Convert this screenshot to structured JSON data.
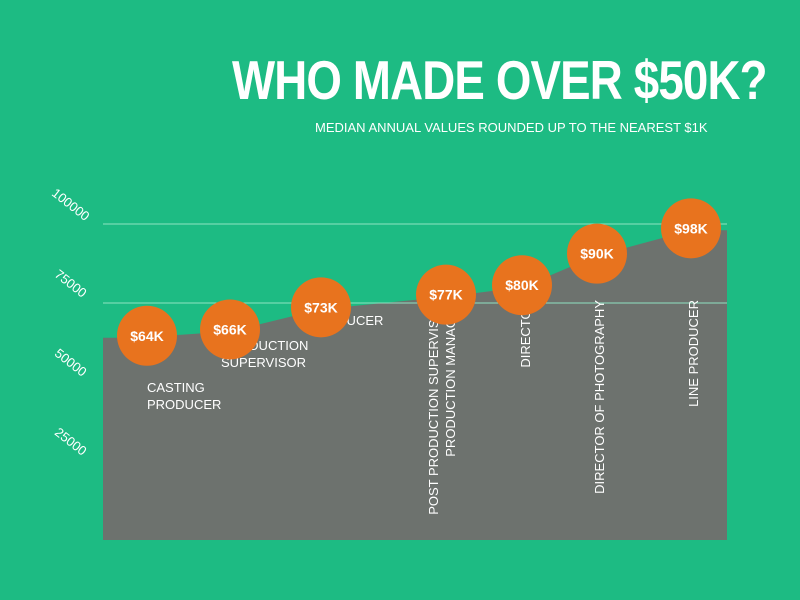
{
  "chart_data": {
    "type": "area",
    "title": "WHO MADE OVER $50K?",
    "subtitle": "MEDIAN ANNUAL VALUES ROUNDED UP TO THE NEAREST $1K",
    "ylim": [
      0,
      100000
    ],
    "y_ticks": [
      {
        "value": 25000,
        "label": "25000"
      },
      {
        "value": 50000,
        "label": "50000"
      },
      {
        "value": 75000,
        "label": "75000"
      },
      {
        "value": 100000,
        "label": "100000"
      }
    ],
    "grid_values": [
      75000,
      100000
    ],
    "categories": [
      {
        "lines": [
          "CASTING",
          "PRODUCER"
        ],
        "value": 64000,
        "value_label": "$64K",
        "orientation": "horizontal"
      },
      {
        "lines": [
          "PRODUCTION",
          "SUPERVISOR"
        ],
        "value": 66000,
        "value_label": "$66K",
        "orientation": "horizontal"
      },
      {
        "lines": [
          "PRODUCER"
        ],
        "value": 73000,
        "value_label": "$73K",
        "orientation": "horizontal"
      },
      {
        "lines": [
          "POST PRODUCTION SUPERVISOR",
          "PRODUCTION MANAGER"
        ],
        "value": 77000,
        "value_label": "$77K",
        "orientation": "vertical"
      },
      {
        "lines": [
          "DIRECTOR"
        ],
        "value": 80000,
        "value_label": "$80K",
        "orientation": "vertical"
      },
      {
        "lines": [
          "DIRECTOR OF PHOTOGRAPHY"
        ],
        "value": 90000,
        "value_label": "$90K",
        "orientation": "vertical"
      },
      {
        "lines": [
          "LINE PRODUCER"
        ],
        "value": 98000,
        "value_label": "$98K",
        "orientation": "vertical"
      }
    ],
    "colors": {
      "background": "#1dbb83",
      "area": "#6d726e",
      "bubble": "#e8731e",
      "text": "#ffffff"
    }
  }
}
